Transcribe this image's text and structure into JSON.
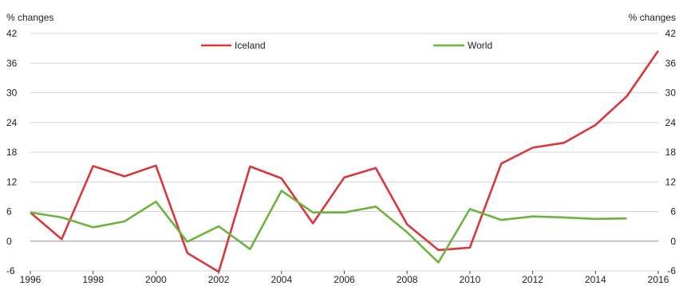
{
  "chart_data": {
    "type": "line",
    "y_unit_label_left": "% changes",
    "y_unit_label_right": "% changes",
    "x": [
      1996,
      1997,
      1998,
      1999,
      2000,
      2001,
      2002,
      2003,
      2004,
      2005,
      2006,
      2007,
      2008,
      2009,
      2010,
      2011,
      2012,
      2013,
      2014,
      2015,
      2016
    ],
    "x_tick_labels": [
      "1996",
      "1998",
      "2000",
      "2002",
      "2004",
      "2006",
      "2008",
      "2010",
      "2012",
      "2014",
      "2016"
    ],
    "xlim": [
      1996,
      2016
    ],
    "ylim": [
      -6,
      42
    ],
    "y_ticks": [
      -6,
      0,
      6,
      12,
      18,
      24,
      30,
      36,
      42
    ],
    "grid": "horizontal",
    "legend_placement": "top",
    "series": [
      {
        "name": "Iceland",
        "color": "#d9373b",
        "values": [
          5.8,
          0.4,
          15.2,
          13.1,
          15.3,
          -2.4,
          -6.2,
          15.1,
          12.7,
          3.6,
          12.9,
          14.8,
          3.4,
          -1.8,
          -1.3,
          15.7,
          18.9,
          19.9,
          23.5,
          29.3,
          38.5
        ]
      },
      {
        "name": "World",
        "color": "#6db33f",
        "values": [
          5.8,
          4.8,
          2.8,
          4.0,
          8.0,
          -0.1,
          3.0,
          -1.6,
          10.2,
          5.8,
          5.8,
          7.0,
          1.8,
          -4.3,
          6.5,
          4.3,
          5.0,
          4.8,
          4.5,
          4.6,
          null
        ]
      }
    ]
  }
}
